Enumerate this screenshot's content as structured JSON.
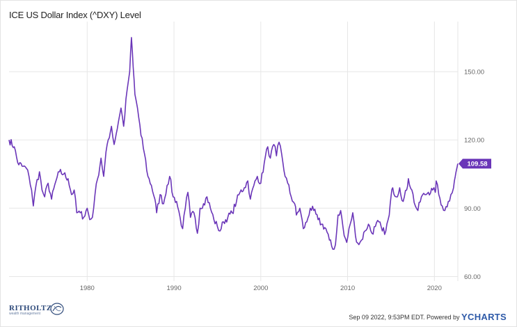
{
  "chart_data": {
    "type": "line",
    "title": "ICE US Dollar Index (^DXY) Level",
    "xlim": [
      1971,
      2022.7
    ],
    "ylim": [
      58,
      172
    ],
    "x_ticks": [
      {
        "value": 1980,
        "label": "1980"
      },
      {
        "value": 1990,
        "label": "1990"
      },
      {
        "value": 2000,
        "label": "2000"
      },
      {
        "value": 2010,
        "label": "2010"
      },
      {
        "value": 2020,
        "label": "2020"
      }
    ],
    "y_ticks": [
      {
        "value": 60,
        "label": "60.00"
      },
      {
        "value": 90,
        "label": "90.00"
      },
      {
        "value": 120,
        "label": "120.00"
      },
      {
        "value": 150,
        "label": "150.00"
      }
    ],
    "grid": true,
    "series": [
      {
        "color": "#6a35b8",
        "last_value_label": "109.58",
        "points": [
          [
            1971.0,
            120.0
          ],
          [
            1971.6,
            117.0
          ],
          [
            1972.0,
            110.0
          ],
          [
            1972.5,
            108.5
          ],
          [
            1973.0,
            107.5
          ],
          [
            1973.3,
            104.0
          ],
          [
            1973.6,
            98.0
          ],
          [
            1973.8,
            91.0
          ],
          [
            1974.1,
            100.0
          ],
          [
            1974.5,
            106.0
          ],
          [
            1974.8,
            98.0
          ],
          [
            1975.1,
            95.0
          ],
          [
            1975.5,
            101.0
          ],
          [
            1975.9,
            94.0
          ],
          [
            1976.4,
            102.0
          ],
          [
            1976.8,
            106.0
          ],
          [
            1977.3,
            105.0
          ],
          [
            1977.8,
            103.0
          ],
          [
            1978.2,
            96.0
          ],
          [
            1978.5,
            98.0
          ],
          [
            1978.8,
            88.0
          ],
          [
            1979.2,
            88.0
          ],
          [
            1979.6,
            86.0
          ],
          [
            1980.0,
            90.0
          ],
          [
            1980.3,
            85.0
          ],
          [
            1980.6,
            86.0
          ],
          [
            1980.9,
            96.0
          ],
          [
            1981.2,
            103.0
          ],
          [
            1981.6,
            112.0
          ],
          [
            1981.9,
            104.0
          ],
          [
            1982.3,
            118.0
          ],
          [
            1982.8,
            126.0
          ],
          [
            1983.1,
            118.0
          ],
          [
            1983.6,
            128.0
          ],
          [
            1983.9,
            134.0
          ],
          [
            1984.2,
            126.0
          ],
          [
            1984.6,
            142.0
          ],
          [
            1984.9,
            150.0
          ],
          [
            1985.1,
            165.0
          ],
          [
            1985.3,
            152.0
          ],
          [
            1985.5,
            140.0
          ],
          [
            1985.8,
            134.0
          ],
          [
            1986.2,
            122.0
          ],
          [
            1986.6,
            114.0
          ],
          [
            1987.0,
            104.0
          ],
          [
            1987.4,
            100.0
          ],
          [
            1987.8,
            94.0
          ],
          [
            1988.0,
            88.0
          ],
          [
            1988.4,
            96.0
          ],
          [
            1988.8,
            92.0
          ],
          [
            1989.2,
            100.0
          ],
          [
            1989.5,
            104.0
          ],
          [
            1989.9,
            95.0
          ],
          [
            1990.3,
            93.0
          ],
          [
            1990.7,
            86.0
          ],
          [
            1991.0,
            81.0
          ],
          [
            1991.3,
            90.0
          ],
          [
            1991.6,
            97.0
          ],
          [
            1991.9,
            86.0
          ],
          [
            1992.3,
            88.0
          ],
          [
            1992.7,
            79.0
          ],
          [
            1993.0,
            90.0
          ],
          [
            1993.4,
            92.0
          ],
          [
            1993.8,
            95.0
          ],
          [
            1994.2,
            90.0
          ],
          [
            1994.6,
            85.0
          ],
          [
            1995.0,
            82.0
          ],
          [
            1995.3,
            80.0
          ],
          [
            1995.7,
            84.0
          ],
          [
            1996.2,
            86.0
          ],
          [
            1996.7,
            88.0
          ],
          [
            1997.2,
            93.0
          ],
          [
            1997.6,
            97.0
          ],
          [
            1998.1,
            99.0
          ],
          [
            1998.5,
            102.0
          ],
          [
            1998.8,
            94.0
          ],
          [
            1999.2,
            100.0
          ],
          [
            1999.6,
            104.0
          ],
          [
            2000.0,
            101.0
          ],
          [
            2000.4,
            110.0
          ],
          [
            2000.8,
            117.0
          ],
          [
            2001.1,
            112.0
          ],
          [
            2001.5,
            118.0
          ],
          [
            2001.8,
            113.0
          ],
          [
            2002.1,
            119.0
          ],
          [
            2002.4,
            114.0
          ],
          [
            2002.8,
            104.0
          ],
          [
            2003.1,
            101.0
          ],
          [
            2003.5,
            95.0
          ],
          [
            2003.9,
            92.0
          ],
          [
            2004.1,
            87.0
          ],
          [
            2004.5,
            90.0
          ],
          [
            2004.9,
            81.0
          ],
          [
            2005.3,
            84.0
          ],
          [
            2005.7,
            90.0
          ],
          [
            2006.1,
            89.0
          ],
          [
            2006.6,
            85.0
          ],
          [
            2007.0,
            83.0
          ],
          [
            2007.5,
            81.0
          ],
          [
            2007.9,
            76.0
          ],
          [
            2008.3,
            72.0
          ],
          [
            2008.6,
            74.0
          ],
          [
            2008.9,
            87.0
          ],
          [
            2009.2,
            89.0
          ],
          [
            2009.6,
            78.0
          ],
          [
            2009.9,
            75.0
          ],
          [
            2010.3,
            83.0
          ],
          [
            2010.6,
            88.0
          ],
          [
            2010.9,
            78.0
          ],
          [
            2011.3,
            74.0
          ],
          [
            2011.6,
            76.0
          ],
          [
            2012.0,
            80.0
          ],
          [
            2012.4,
            83.0
          ],
          [
            2012.8,
            79.0
          ],
          [
            2013.2,
            82.0
          ],
          [
            2013.6,
            84.0
          ],
          [
            2014.0,
            80.0
          ],
          [
            2014.4,
            80.0
          ],
          [
            2014.8,
            87.0
          ],
          [
            2015.0,
            95.0
          ],
          [
            2015.2,
            99.0
          ],
          [
            2015.6,
            95.0
          ],
          [
            2016.0,
            99.0
          ],
          [
            2016.4,
            93.0
          ],
          [
            2016.8,
            98.0
          ],
          [
            2017.0,
            103.0
          ],
          [
            2017.4,
            98.0
          ],
          [
            2017.8,
            91.0
          ],
          [
            2018.1,
            89.0
          ],
          [
            2018.5,
            95.0
          ],
          [
            2018.9,
            96.0
          ],
          [
            2019.3,
            97.0
          ],
          [
            2019.8,
            98.0
          ],
          [
            2020.1,
            97.0
          ],
          [
            2020.2,
            102.0
          ],
          [
            2020.5,
            96.0
          ],
          [
            2020.9,
            91.0
          ],
          [
            2021.2,
            89.0
          ],
          [
            2021.6,
            93.0
          ],
          [
            2021.9,
            96.0
          ],
          [
            2022.2,
            99.0
          ],
          [
            2022.4,
            104.0
          ],
          [
            2022.55,
            107.0
          ],
          [
            2022.69,
            109.58
          ]
        ]
      }
    ]
  },
  "footer": {
    "logo_name": "RITHOLTZ",
    "logo_sub": "wealth management",
    "timestamp_text": "Sep 09 2022, 9:53PM EDT. Powered by",
    "brand_y": "Y",
    "brand_rest": "CHARTS"
  },
  "colors": {
    "line": "#6a35b8",
    "grid": "#e6e6e6",
    "axis_text": "#666666",
    "badge": "#6a35b8"
  }
}
